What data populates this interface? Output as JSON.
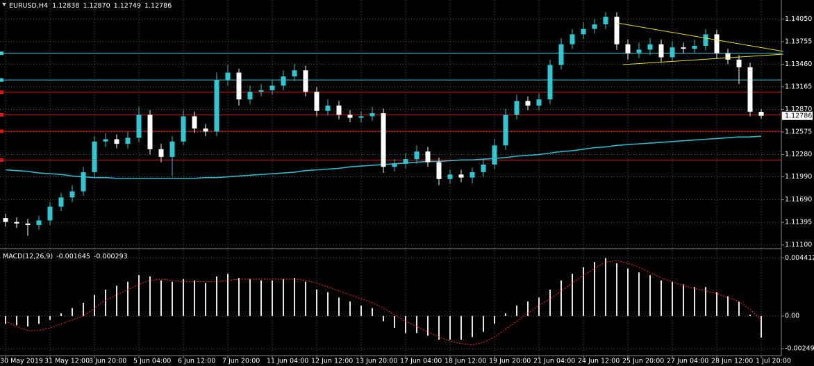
{
  "chart_data": [
    {
      "type": "candlestick",
      "symbol": "EURUSD,H4",
      "last_labels": [
        "1.12838",
        "1.12870",
        "1.12749",
        "1.12786"
      ],
      "categories": [
        "30 May 2019",
        null,
        null,
        null,
        "31 May 12:00",
        null,
        null,
        null,
        "3 Jun 20:00",
        null,
        null,
        null,
        "5 Jun 04:00",
        null,
        null,
        null,
        "6 Jun 12:00",
        null,
        null,
        null,
        "7 Jun 20:00",
        null,
        null,
        null,
        "11 Jun 04:00",
        null,
        null,
        null,
        "12 Jun 12:00",
        null,
        null,
        null,
        "13 Jun 20:00",
        null,
        null,
        null,
        "17 Jun 04:00",
        null,
        null,
        null,
        "18 Jun 12:00",
        null,
        null,
        null,
        "19 Jun 20:00",
        null,
        null,
        null,
        "21 Jun 04:00",
        null,
        null,
        null,
        "24 Jun 12:00",
        null,
        null,
        null,
        "25 Jun 20:00",
        null,
        null,
        null,
        "27 Jun 04:00",
        null,
        null,
        null,
        "28 Jun 12:00",
        null,
        null,
        null,
        "1 Jul 20:00"
      ],
      "open": [
        1.1145,
        1.114,
        1.1138,
        1.1136,
        1.1142,
        1.116,
        1.1172,
        1.118,
        1.1205,
        1.1245,
        1.1248,
        1.1242,
        1.125,
        1.128,
        1.1235,
        1.1225,
        1.1245,
        1.1278,
        1.1262,
        1.1258,
        1.1325,
        1.1335,
        1.13,
        1.131,
        1.1312,
        1.1318,
        1.133,
        1.1338,
        1.131,
        1.1285,
        1.1292,
        1.128,
        1.1276,
        1.1278,
        1.1282,
        1.1212,
        1.1216,
        1.1222,
        1.1232,
        1.1218,
        1.1196,
        1.1202,
        1.1198,
        1.1205,
        1.1215,
        1.124,
        1.128,
        1.1298,
        1.1292,
        1.13,
        1.1345,
        1.1372,
        1.1385,
        1.1392,
        1.1398,
        1.1408,
        1.1372,
        1.136,
        1.1365,
        1.1372,
        1.1355,
        1.1368,
        1.1366,
        1.137,
        1.1385,
        1.136,
        1.1352,
        1.1342,
        1.12838
      ],
      "high": [
        1.1151,
        1.1146,
        1.1144,
        1.1148,
        1.1166,
        1.1178,
        1.1188,
        1.1212,
        1.1252,
        1.1256,
        1.1254,
        1.1258,
        1.129,
        1.1286,
        1.1242,
        1.1252,
        1.1286,
        1.1284,
        1.1268,
        1.1335,
        1.1345,
        1.134,
        1.1318,
        1.132,
        1.1326,
        1.1338,
        1.1346,
        1.1344,
        1.1316,
        1.13,
        1.1298,
        1.1286,
        1.1284,
        1.129,
        1.1288,
        1.1222,
        1.123,
        1.124,
        1.1238,
        1.1224,
        1.1208,
        1.1208,
        1.1211,
        1.1222,
        1.1248,
        1.1288,
        1.1306,
        1.1304,
        1.1308,
        1.1352,
        1.138,
        1.1392,
        1.14,
        1.1405,
        1.1414,
        1.1414,
        1.1378,
        1.1374,
        1.138,
        1.1378,
        1.1376,
        1.1374,
        1.1378,
        1.1392,
        1.1391,
        1.1366,
        1.1358,
        1.1348,
        1.1287
      ],
      "low": [
        1.1134,
        1.1132,
        1.1122,
        1.113,
        1.1136,
        1.1154,
        1.1166,
        1.1174,
        1.1199,
        1.1238,
        1.1236,
        1.1236,
        1.1244,
        1.1228,
        1.1218,
        1.12,
        1.124,
        1.1256,
        1.1252,
        1.1252,
        1.1318,
        1.1292,
        1.1294,
        1.1304,
        1.1306,
        1.1312,
        1.1324,
        1.1304,
        1.1278,
        1.1279,
        1.1274,
        1.127,
        1.127,
        1.1272,
        1.1204,
        1.1206,
        1.121,
        1.1216,
        1.1212,
        1.1188,
        1.119,
        1.1192,
        1.119,
        1.1199,
        1.1209,
        1.1234,
        1.1274,
        1.1286,
        1.1286,
        1.1294,
        1.1339,
        1.1366,
        1.1379,
        1.1386,
        1.1392,
        1.1365,
        1.1352,
        1.1354,
        1.1358,
        1.1348,
        1.1349,
        1.136,
        1.136,
        1.1364,
        1.1354,
        1.1346,
        1.132,
        1.1278,
        1.12749
      ],
      "close": [
        1.114,
        1.1138,
        1.1136,
        1.1142,
        1.116,
        1.1172,
        1.118,
        1.1205,
        1.1245,
        1.1248,
        1.1242,
        1.125,
        1.128,
        1.1235,
        1.1225,
        1.1245,
        1.1278,
        1.1262,
        1.1258,
        1.1325,
        1.1335,
        1.13,
        1.131,
        1.1312,
        1.1318,
        1.133,
        1.1338,
        1.131,
        1.1285,
        1.1292,
        1.128,
        1.1276,
        1.1278,
        1.1282,
        1.1212,
        1.1216,
        1.1222,
        1.1232,
        1.1218,
        1.1196,
        1.1202,
        1.1198,
        1.1205,
        1.1215,
        1.124,
        1.128,
        1.1298,
        1.1292,
        1.13,
        1.1345,
        1.1372,
        1.1385,
        1.1392,
        1.1398,
        1.1408,
        1.1372,
        1.136,
        1.1365,
        1.1372,
        1.1355,
        1.1368,
        1.1366,
        1.137,
        1.1385,
        1.136,
        1.1352,
        1.1342,
        1.1284,
        1.12786
      ],
      "up_color": "#2ec8d2",
      "down_color": "#ffffff",
      "ma": {
        "color": "#2fb8cc",
        "values": [
          1.1208,
          1.1207,
          1.1206,
          1.1204,
          1.1203,
          1.1202,
          1.12,
          1.1199,
          1.1198,
          1.1198,
          1.1197,
          1.1197,
          1.1197,
          1.1197,
          1.1197,
          1.1197,
          1.1197,
          1.1197,
          1.1198,
          1.1198,
          1.1199,
          1.12,
          1.1201,
          1.1202,
          1.1203,
          1.1204,
          1.1205,
          1.1207,
          1.1208,
          1.1209,
          1.121,
          1.1212,
          1.1213,
          1.1214,
          1.1215,
          1.1216,
          1.1217,
          1.1218,
          1.1219,
          1.1219,
          1.122,
          1.1221,
          1.1221,
          1.1222,
          1.1223,
          1.1224,
          1.1226,
          1.1227,
          1.1228,
          1.123,
          1.1232,
          1.1233,
          1.1235,
          1.1237,
          1.1238,
          1.124,
          1.1241,
          1.1242,
          1.1243,
          1.1244,
          1.1245,
          1.1246,
          1.1247,
          1.1248,
          1.1249,
          1.125,
          1.1251,
          1.1251,
          1.1252
        ]
      },
      "levels": [
        {
          "value": 1.13603,
          "color": "#40c8d8"
        },
        {
          "value": 1.13254,
          "color": "#40c8d8"
        },
        {
          "value": 1.13094,
          "color": "#e01414"
        },
        {
          "value": 1.12799,
          "color": "#e01414"
        },
        {
          "value": 1.12584,
          "color": "#e01414"
        },
        {
          "value": 1.12209,
          "color": "#e01414"
        }
      ],
      "ylim": [
        1.1107,
        1.1428
      ],
      "yticks": [
        {
          "value": 1.1405,
          "label": "1.14050"
        },
        {
          "value": 1.13755,
          "label": "1.13755"
        },
        {
          "value": 1.1346,
          "label": "1.13460"
        },
        {
          "value": 1.13165,
          "label": "1.13165"
        },
        {
          "value": 1.1287,
          "label": "1.12870"
        },
        {
          "value": 1.12575,
          "label": "1.12575"
        },
        {
          "value": 1.1228,
          "label": "1.12280"
        },
        {
          "value": 1.1199,
          "label": "1.11990"
        },
        {
          "value": 1.1169,
          "label": "1.11690"
        },
        {
          "value": 1.11395,
          "label": "1.11395"
        },
        {
          "value": 1.111,
          "label": "1.11100"
        }
      ],
      "grid": true
    },
    {
      "type": "macd",
      "title": "MACD(12,26,9)",
      "histogram": {
        "color": "#e8e8e8",
        "values": [
          -0.0006,
          -0.0007,
          -0.0008,
          -0.0006,
          -0.0003,
          0.0002,
          0.0006,
          0.001,
          0.0016,
          0.002,
          0.0023,
          0.0026,
          0.0031,
          0.003,
          0.0027,
          0.0026,
          0.0028,
          0.0027,
          0.0025,
          0.003,
          0.0032,
          0.0029,
          0.0028,
          0.0027,
          0.0027,
          0.0028,
          0.0029,
          0.0026,
          0.002,
          0.0018,
          0.0014,
          0.0011,
          0.0008,
          0.0006,
          -0.0004,
          -0.0009,
          -0.0013,
          -0.0013,
          -0.0015,
          -0.0018,
          -0.0018,
          -0.0018,
          -0.0016,
          -0.0012,
          -0.0006,
          0.0002,
          0.0008,
          0.0011,
          0.0014,
          0.002,
          0.0027,
          0.0032,
          0.0037,
          0.0041,
          0.0044,
          0.004,
          0.0036,
          0.0033,
          0.0031,
          0.0027,
          0.0026,
          0.0024,
          0.0022,
          0.0022,
          0.0018,
          0.0015,
          0.0011,
          0.0001,
          -0.001645
        ]
      },
      "signal": {
        "color": "#ff2020",
        "values": [
          -0.0004,
          -0.0008,
          -0.0011,
          -0.0011,
          -0.0009,
          -0.0006,
          -0.0003,
          0.0,
          0.0006,
          0.0012,
          0.0016,
          0.002,
          0.0024,
          0.0027,
          0.0028,
          0.0027,
          0.0026,
          0.0026,
          0.0026,
          0.0026,
          0.0027,
          0.0028,
          0.0028,
          0.0028,
          0.0028,
          0.0028,
          0.0028,
          0.0027,
          0.0025,
          0.0022,
          0.0019,
          0.0016,
          0.0013,
          0.001,
          0.0006,
          0.0001,
          -0.0004,
          -0.0008,
          -0.0012,
          -0.0016,
          -0.0019,
          -0.0021,
          -0.0022,
          -0.002,
          -0.0016,
          -0.001,
          -0.0004,
          0.0002,
          0.0008,
          0.0013,
          0.0019,
          0.0025,
          0.0031,
          0.0036,
          0.0041,
          0.0042,
          0.004,
          0.0037,
          0.0033,
          0.0029,
          0.0026,
          0.0023,
          0.0021,
          0.0019,
          0.0017,
          0.0014,
          0.0011,
          0.0005,
          -0.000293
        ]
      },
      "ylim": [
        -0.0029,
        0.0049
      ],
      "yticks": [
        0.004412,
        {
          "value": 0,
          "label": "0.00"
        },
        -0.00249
      ],
      "grid": true
    }
  ]
}
